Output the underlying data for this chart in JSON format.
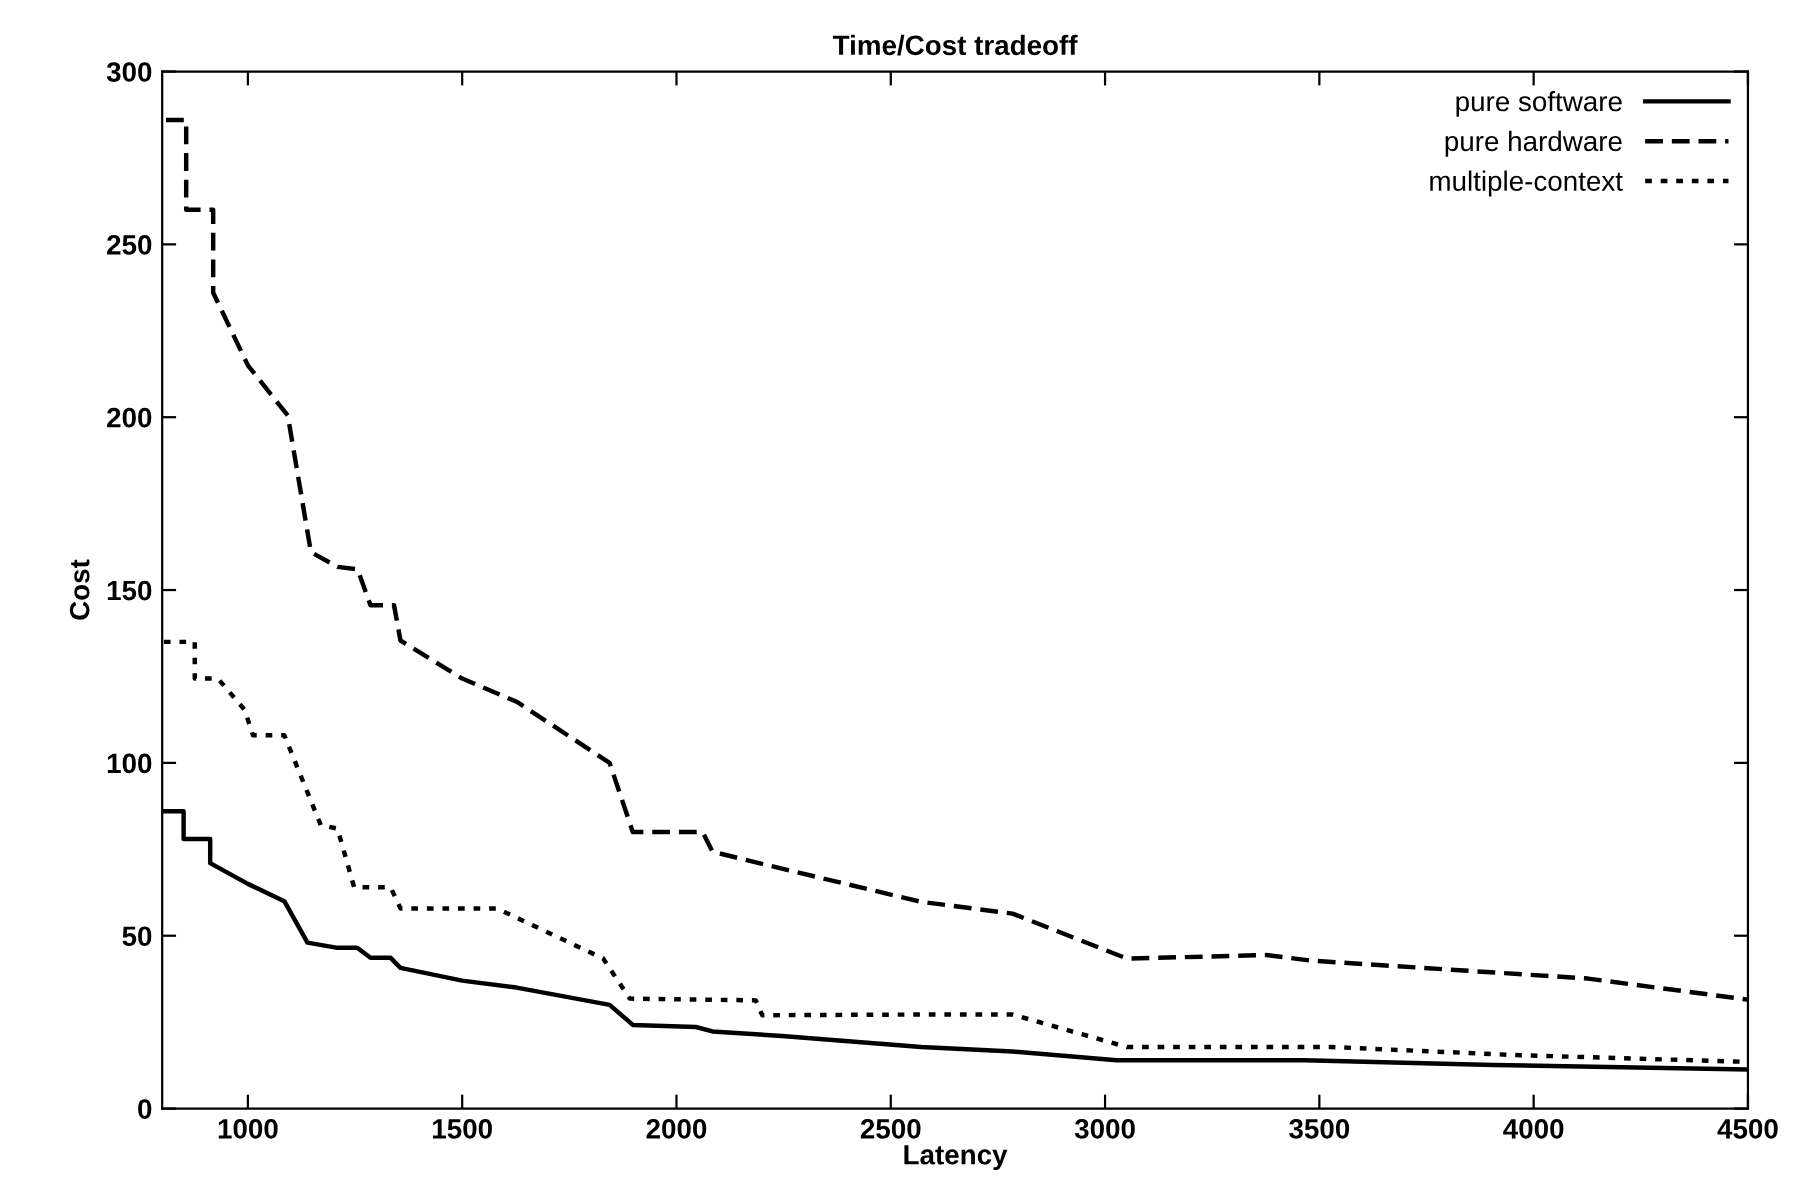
{
  "chart_data": {
    "type": "line",
    "title": "Time/Cost tradeoff",
    "xlabel": "Latency",
    "ylabel": "Cost",
    "xlim": [
      800,
      4500
    ],
    "ylim": [
      0,
      300
    ],
    "xticks": [
      1000,
      1500,
      2000,
      2500,
      3000,
      3500,
      4000,
      4500
    ],
    "yticks": [
      0,
      50,
      100,
      150,
      200,
      250,
      300
    ],
    "grid": false,
    "legend": "top right",
    "marker": "none",
    "series": [
      {
        "name": "pure software",
        "color": "#000000",
        "line_style": "solid",
        "x": [
          804,
          850,
          850,
          912,
          912,
          1000,
          1085,
          1139,
          1209,
          1255,
          1286,
          1333,
          1356,
          1500,
          1627,
          1844,
          1898,
          2045,
          2084,
          2246,
          2571,
          2784,
          3027,
          3465,
          3906,
          4500
        ],
        "values": [
          86,
          86,
          78,
          78,
          71,
          65,
          60,
          48,
          46.5,
          46.5,
          43.6,
          43.6,
          40.7,
          37,
          35,
          30,
          24.2,
          23.6,
          22.3,
          21,
          17.8,
          16.5,
          14,
          14,
          12.6,
          11.3
        ]
      },
      {
        "name": "pure hardware",
        "color": "#000000",
        "line_style": "dashed",
        "x": [
          809,
          856,
          856,
          919,
          919,
          1000,
          1093,
          1147,
          1209,
          1256,
          1286,
          1341,
          1356,
          1500,
          1627,
          1844,
          1898,
          2061,
          2084,
          2246,
          2571,
          2784,
          3051,
          3377,
          3480,
          4127,
          4500
        ],
        "values": [
          286,
          286,
          260,
          260,
          236,
          215,
          200.5,
          161,
          156.7,
          156,
          145.6,
          145.6,
          135.4,
          124.4,
          117.7,
          100,
          80,
          80,
          74.3,
          69.4,
          59.8,
          56.4,
          43.4,
          44.4,
          42.8,
          37.6,
          31.5
        ]
      },
      {
        "name": "multiple-context",
        "color": "#000000",
        "line_style": "dotted",
        "x": [
          804,
          876,
          876,
          930,
          992,
          1012,
          1085,
          1170,
          1209,
          1248,
          1333,
          1356,
          1581,
          1829,
          1891,
          2185,
          2200,
          2571,
          2784,
          3051,
          3528,
          3953,
          4500
        ],
        "values": [
          135,
          135,
          124.4,
          124.4,
          115.4,
          108,
          108,
          82,
          81,
          64,
          64,
          57.9,
          57.9,
          43.4,
          31.8,
          31.3,
          27,
          27.2,
          27.2,
          17.8,
          17.8,
          15.5,
          13.5
        ]
      }
    ]
  }
}
